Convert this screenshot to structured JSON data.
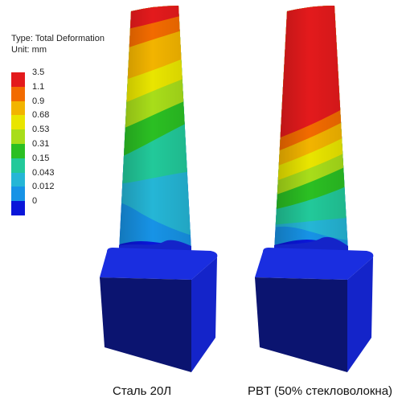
{
  "legend": {
    "type_line": "Type: Total Deformation",
    "unit_line": "Unit: mm",
    "items": [
      {
        "label": "3.5",
        "color": "#e31a1c"
      },
      {
        "label": "1.1",
        "color": "#f26b00"
      },
      {
        "label": "0.9",
        "color": "#f2b400"
      },
      {
        "label": "0.68",
        "color": "#e9e500"
      },
      {
        "label": "0.53",
        "color": "#a8dd1a"
      },
      {
        "label": "0.31",
        "color": "#2bbf23"
      },
      {
        "label": "0.15",
        "color": "#22c99a"
      },
      {
        "label": "0.043",
        "color": "#25b6d6"
      },
      {
        "label": "0.012",
        "color": "#1793e6"
      },
      {
        "label": "0",
        "color": "#0a16d9"
      }
    ]
  },
  "captions": {
    "left": "Сталь 20Л",
    "right": "PBT (50% стекловолокна)"
  },
  "colors": {
    "base_top": "#1a2ee0",
    "base_front": "#0b1470",
    "base_side": "#1424c9"
  }
}
